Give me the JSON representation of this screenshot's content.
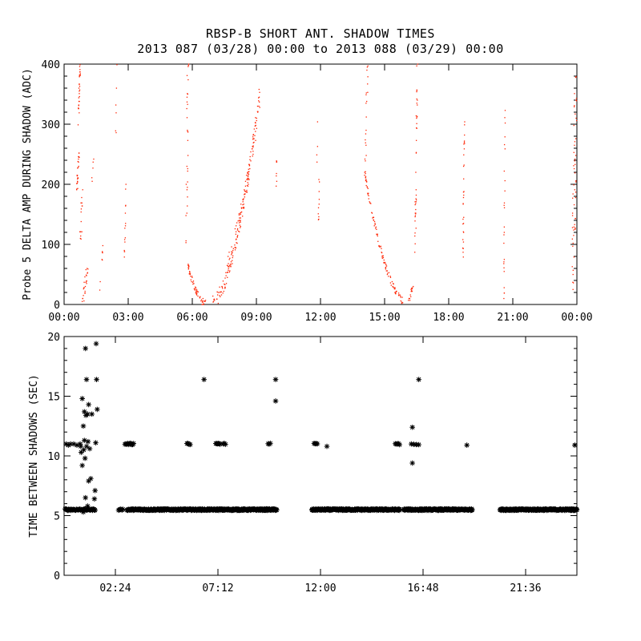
{
  "chart_data": [
    {
      "type": "scatter",
      "title": "RBSP-B SHORT ANT. SHADOW TIMES",
      "subtitle": "2013 087 (03/28) 00:00 to 2013 088 (03/29) 00:00",
      "xlabel": "",
      "ylabel": "Probe 5 DELTA AMP DURING SHADOW (ADC)",
      "xlim": [
        0,
        24
      ],
      "ylim": [
        0,
        400
      ],
      "x_unit": "hours since 00:00",
      "xticks": [
        0,
        3,
        6,
        9,
        12,
        15,
        18,
        21,
        24
      ],
      "xtick_labels": [
        "00:00",
        "03:00",
        "06:00",
        "09:00",
        "12:00",
        "15:00",
        "18:00",
        "21:00",
        "00:00"
      ],
      "yticks": [
        0,
        100,
        200,
        300,
        400
      ],
      "color": "#ff2200",
      "grid": false,
      "series": [
        {
          "name": "",
          "points": []
        }
      ]
    },
    {
      "type": "scatter",
      "xlabel": "",
      "ylabel": "TIME BETWEEN SHADOWS (SEC)",
      "xlim": [
        0,
        24
      ],
      "ylim": [
        0,
        20
      ],
      "x_unit": "hours since 00:00",
      "xticks": [
        2.4,
        7.2,
        12.0,
        16.8,
        21.6
      ],
      "xtick_labels": [
        "02:24",
        "07:12",
        "12:00",
        "16:48",
        "21:36"
      ],
      "yticks": [
        0,
        5,
        10,
        15,
        20
      ],
      "color": "#000000",
      "marker": "*",
      "grid": false,
      "series": [
        {
          "name": "",
          "points": []
        }
      ]
    }
  ]
}
